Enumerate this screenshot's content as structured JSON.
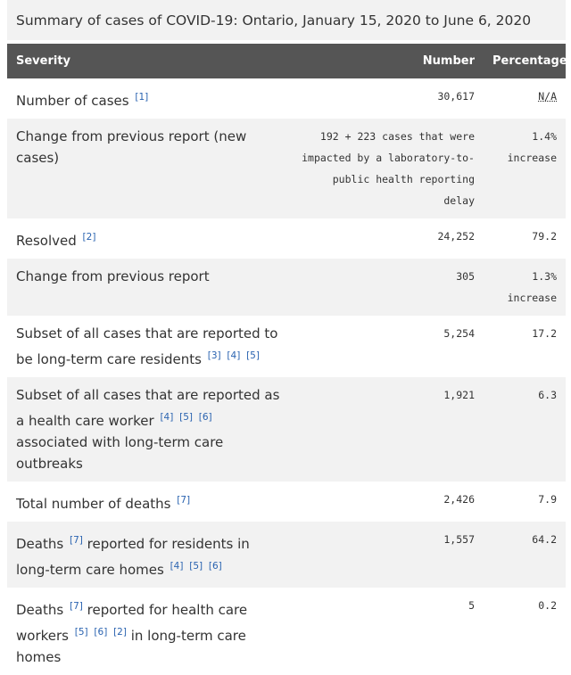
{
  "caption": "Summary of cases of COVID-19: Ontario, January 15, 2020 to June 6, 2020",
  "table": {
    "header": [
      "Severity",
      "Number",
      "Percentage"
    ],
    "rows": [
      {
        "label": [
          {
            "text": "Number of cases"
          },
          {
            "ref": "[1]"
          }
        ],
        "number": "30,617",
        "percentage": "N/A"
      },
      {
        "label": [
          {
            "text": "Change from previous report (new cases)"
          }
        ],
        "number": "192 + 223 cases that were impacted by a laboratory-to-public health reporting delay",
        "percentage": "1.4% increase"
      },
      {
        "label": [
          {
            "text": "Resolved"
          },
          {
            "ref": "[2]"
          }
        ],
        "number": "24,252",
        "percentage": "79.2"
      },
      {
        "label": [
          {
            "text": "Change from previous report"
          }
        ],
        "number": "305",
        "percentage": "1.3% increase"
      },
      {
        "label": [
          {
            "text": "Subset of all cases that are reported to be long-term care residents"
          },
          {
            "ref": "[3]"
          },
          {
            "ref": "[4]"
          },
          {
            "ref": "[5]"
          }
        ],
        "number": "5,254",
        "percentage": "17.2"
      },
      {
        "label": [
          {
            "text": "Subset of all cases that are reported as a health care worker"
          },
          {
            "ref": "[4]"
          },
          {
            "ref": "[5]"
          },
          {
            "ref": "[6]"
          },
          {
            "text": "associated with long-term care outbreaks"
          }
        ],
        "number": "1,921",
        "percentage": "6.3"
      },
      {
        "label": [
          {
            "text": "Total number of deaths"
          },
          {
            "ref": "[7]"
          }
        ],
        "number": "2,426",
        "percentage": "7.9"
      },
      {
        "label": [
          {
            "text": "Deaths"
          },
          {
            "ref": "[7]"
          },
          {
            "text": "reported for residents in long-term care homes"
          },
          {
            "ref": "[4]"
          },
          {
            "ref": "[5]"
          },
          {
            "ref": "[6]"
          }
        ],
        "number": "1,557",
        "percentage": "64.2"
      },
      {
        "label": [
          {
            "text": "Deaths"
          },
          {
            "ref": "[7]"
          },
          {
            "text": "reported for health care workers"
          },
          {
            "ref": "[5]"
          },
          {
            "ref": "[6]"
          },
          {
            "ref": "[2]"
          },
          {
            "text": "in long-term care homes"
          }
        ],
        "number": "5",
        "percentage": "0.2"
      }
    ]
  }
}
